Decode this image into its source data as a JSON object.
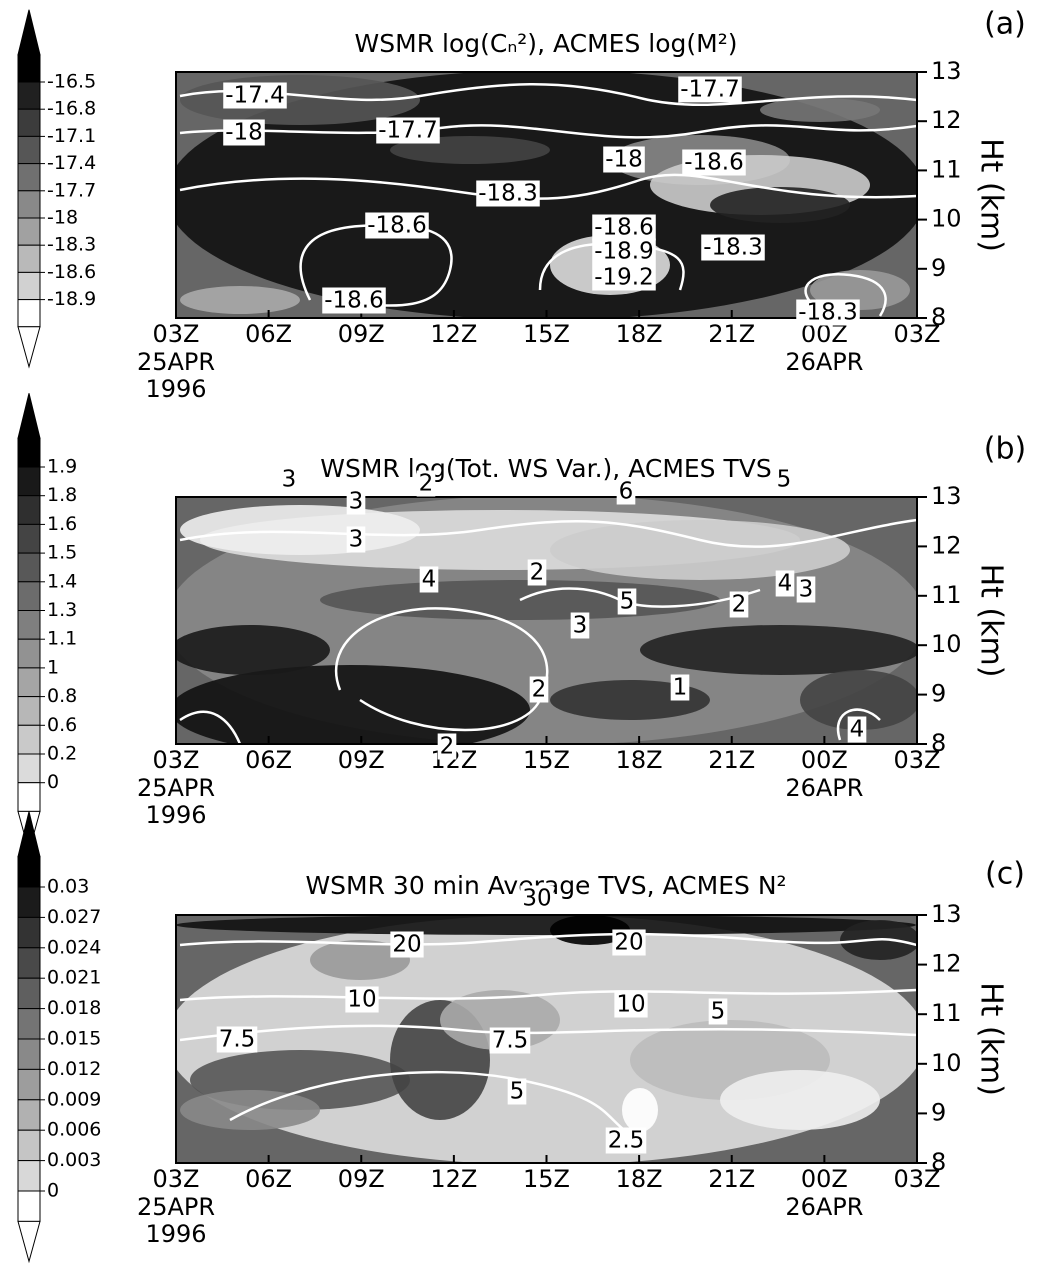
{
  "chart_data": [
    {
      "type": "contour",
      "title": "WSMR log(Cₙ²), ACMES log(M²)",
      "panel_label": "(a)",
      "y_label": "Ht (km)",
      "categories": [
        "03Z",
        "06Z",
        "09Z",
        "12Z",
        "15Z",
        "18Z",
        "21Z",
        "00Z",
        "03Z"
      ],
      "date_labels": [
        [
          "25APR",
          "1996"
        ],
        null,
        null,
        null,
        null,
        null,
        null,
        [
          "26APR"
        ],
        null
      ],
      "ylim": [
        8,
        13
      ],
      "yticks": [
        8,
        9,
        10,
        11,
        12,
        13
      ],
      "colorbar_ticks": [
        -16.5,
        -16.8,
        -17.1,
        -17.4,
        -17.7,
        -18,
        -18.3,
        -18.6,
        -18.9
      ],
      "contour_labels": [
        -17.4,
        -17.7,
        -18,
        -17.7,
        -18,
        -18.6,
        -18.3,
        -18.6,
        -18.6,
        -18.9,
        -19.2,
        -18.3,
        -18.6,
        -18.3
      ]
    },
    {
      "type": "contour",
      "title": "WSMR log(Tot. WS Var.), ACMES TVS",
      "panel_label": "(b)",
      "y_label": "Ht (km)",
      "categories": [
        "03Z",
        "06Z",
        "09Z",
        "12Z",
        "15Z",
        "18Z",
        "21Z",
        "00Z",
        "03Z"
      ],
      "date_labels": [
        [
          "25APR",
          "1996"
        ],
        null,
        null,
        null,
        null,
        null,
        null,
        [
          "26APR"
        ],
        null
      ],
      "ylim": [
        8,
        13
      ],
      "yticks": [
        8,
        9,
        10,
        11,
        12,
        13
      ],
      "colorbar_ticks": [
        1.9,
        1.8,
        1.6,
        1.5,
        1.4,
        1.3,
        1.1,
        1,
        0.8,
        0.6,
        0.2,
        0
      ],
      "contour_labels": [
        3,
        2,
        6,
        5,
        3,
        4,
        2,
        5,
        2,
        4,
        3,
        3,
        3,
        2,
        1,
        2,
        4
      ]
    },
    {
      "type": "contour",
      "title": "WSMR 30 min Average TVS, ACMES N²",
      "panel_label": "(c)",
      "y_label": "Ht (km)",
      "categories": [
        "03Z",
        "06Z",
        "09Z",
        "12Z",
        "15Z",
        "18Z",
        "21Z",
        "00Z",
        "03Z"
      ],
      "date_labels": [
        [
          "25APR",
          "1996"
        ],
        null,
        null,
        null,
        null,
        null,
        null,
        [
          "26APR"
        ],
        null
      ],
      "ylim": [
        8,
        13
      ],
      "yticks": [
        8,
        9,
        10,
        11,
        12,
        13
      ],
      "colorbar_ticks": [
        0.03,
        0.027,
        0.024,
        0.021,
        0.018,
        0.015,
        0.012,
        0.009,
        0.006,
        0.003,
        0
      ],
      "contour_labels": [
        30,
        20,
        20,
        10,
        10,
        5,
        7.5,
        7.5,
        5,
        2.5
      ]
    }
  ]
}
